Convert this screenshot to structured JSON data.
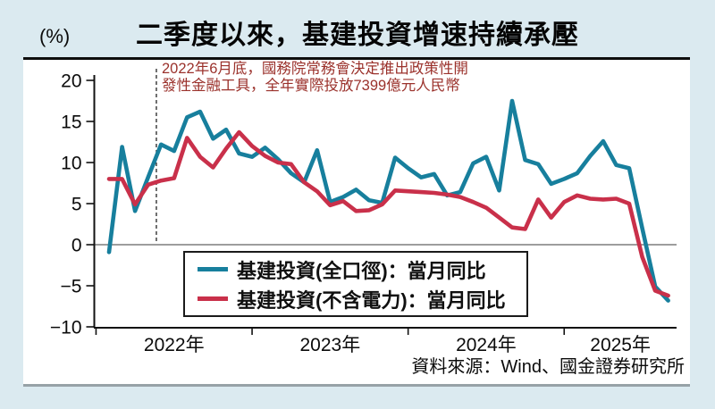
{
  "header": {
    "unit_label": "(%)",
    "title": "二季度以來，基建投資增速持續承壓"
  },
  "annotation": {
    "line1": "2022年6月底，國務院常務會決定推出政策性開",
    "line2": "發性金融工具，全年實際投放7399億元人民幣",
    "color": "#9b322c"
  },
  "legend": {
    "items": [
      {
        "label": "基建投資(全口徑)：當月同比",
        "color": "#177f9d"
      },
      {
        "label": "基建投資(不含電力)：當月同比",
        "color": "#c9304a"
      }
    ]
  },
  "source": {
    "text": "資料來源：Wind、國金證券研究所"
  },
  "chart_data": {
    "type": "line",
    "title": "二季度以來，基建投資增速持續承壓",
    "ylabel": "(%)",
    "ylim": [
      -10,
      20
    ],
    "grid": false,
    "zero_line": true,
    "legend_position": "inside-bottom-left",
    "x": [
      "2022-02",
      "2022-03",
      "2022-04",
      "2022-05",
      "2022-06",
      "2022-07",
      "2022-08",
      "2022-09",
      "2022-10",
      "2022-11",
      "2022-12",
      "2023-01",
      "2023-02",
      "2023-03",
      "2023-04",
      "2023-05",
      "2023-06",
      "2023-07",
      "2023-08",
      "2023-09",
      "2023-10",
      "2023-11",
      "2023-12",
      "2024-01",
      "2024-02",
      "2024-03",
      "2024-04",
      "2024-05",
      "2024-06",
      "2024-07",
      "2024-08",
      "2024-09",
      "2024-10",
      "2024-11",
      "2024-12",
      "2025-01",
      "2025-02",
      "2025-03",
      "2025-04",
      "2025-05",
      "2025-06",
      "2025-07",
      "2025-08",
      "2025-09"
    ],
    "series": [
      {
        "name": "基建投資(全口徑)：當月同比",
        "color": "#177f9d",
        "values": [
          -0.9,
          11.9,
          4.1,
          8.2,
          12.2,
          11.4,
          15.5,
          16.2,
          12.9,
          14.0,
          11.1,
          10.7,
          11.8,
          10.4,
          8.7,
          7.6,
          11.5,
          5.2,
          5.8,
          6.7,
          5.4,
          5.1,
          10.6,
          9.3,
          8.2,
          8.6,
          6.0,
          6.4,
          9.9,
          10.7,
          6.6,
          17.5,
          10.3,
          9.8,
          7.4,
          8.0,
          8.7,
          10.8,
          12.6,
          9.7,
          9.3,
          2.0,
          -5.1,
          -6.8
        ]
      },
      {
        "name": "基建投資(不含電力)：當月同比",
        "color": "#c9304a",
        "values": [
          8.0,
          8.0,
          4.9,
          7.3,
          7.8,
          8.1,
          13.0,
          10.7,
          9.4,
          11.7,
          13.7,
          12.0,
          10.8,
          10.0,
          9.8,
          7.6,
          6.5,
          4.8,
          5.3,
          4.1,
          4.2,
          4.9,
          6.6,
          6.5,
          6.4,
          6.3,
          6.1,
          5.8,
          5.2,
          4.5,
          3.3,
          2.1,
          1.9,
          5.5,
          3.3,
          5.2,
          6.0,
          5.6,
          5.5,
          5.6,
          5.0,
          -1.5,
          -5.6,
          -6.2
        ]
      }
    ],
    "yticks": [
      {
        "label": "20",
        "value": 20
      },
      {
        "label": "15",
        "value": 15
      },
      {
        "label": "10",
        "value": 10
      },
      {
        "label": "5",
        "value": 5
      },
      {
        "label": "0",
        "value": 0
      },
      {
        "label": "−5",
        "value": -5
      },
      {
        "label": "−10",
        "value": -10
      }
    ],
    "xticks": [
      {
        "label": "2022年",
        "i": -1
      },
      {
        "label": "2023年",
        "i": 11
      },
      {
        "label": "2024年",
        "i": 23
      },
      {
        "label": "2025年",
        "i": 35
      }
    ],
    "vline_month_i": 3.64
  }
}
